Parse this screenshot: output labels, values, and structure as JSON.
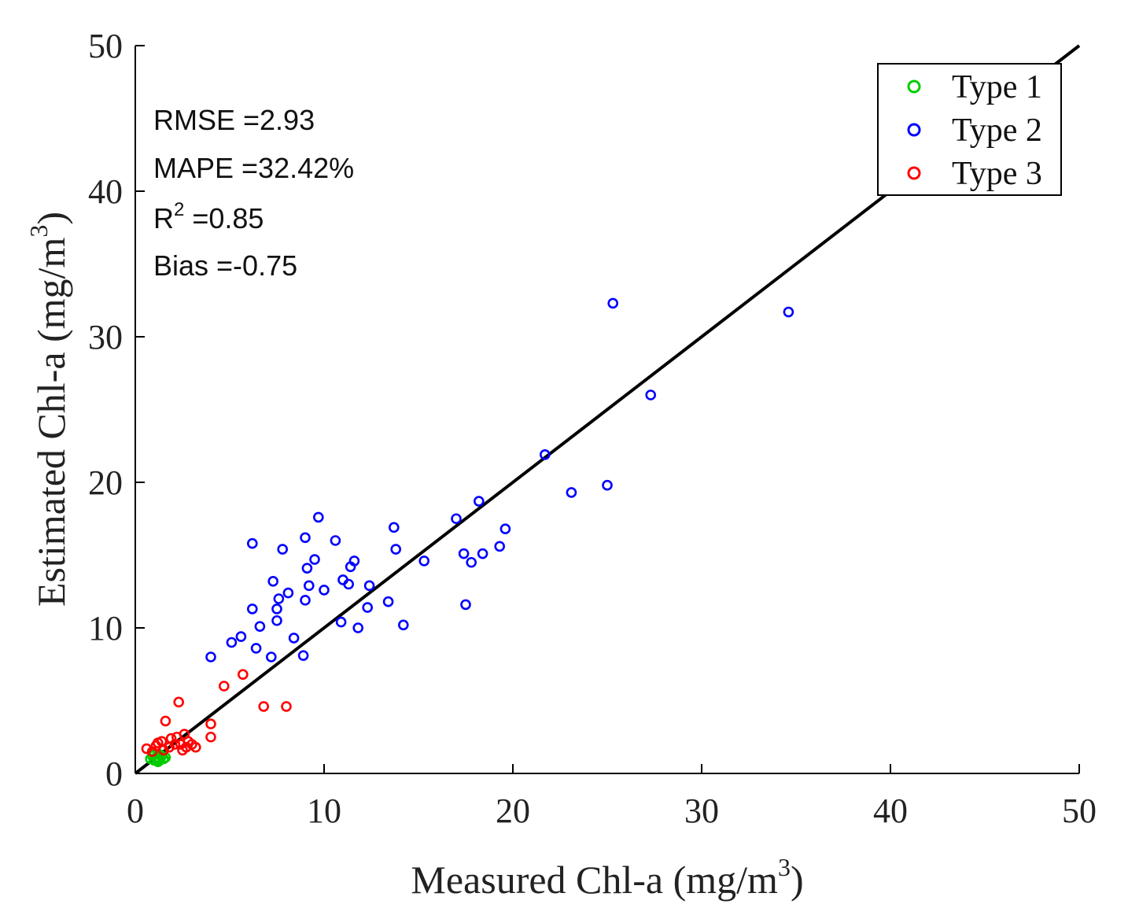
{
  "chart_data": {
    "type": "scatter",
    "title": "",
    "xlabel": "Measured Chl-a (mg/m",
    "ylabel": "Estimated Chl-a (mg/m",
    "label_superscript": "3",
    "label_close": ")",
    "xlim": [
      0,
      50
    ],
    "ylim": [
      0,
      50
    ],
    "xticks": [
      0,
      10,
      20,
      30,
      40,
      50
    ],
    "yticks": [
      0,
      10,
      20,
      30,
      40,
      50
    ],
    "grid": false,
    "reference_line": {
      "x": [
        0,
        50
      ],
      "y": [
        0,
        50
      ],
      "color": "#000000"
    },
    "legend_position": "top-right",
    "stats": {
      "rmse": "RMSE =2.93",
      "mape": "MAPE =32.42%",
      "r2_prefix": "R",
      "r2_sup": "2",
      "r2_value": " =0.85",
      "bias": "Bias =-0.75"
    },
    "series": [
      {
        "name": "Type 1",
        "color": "#00cc00",
        "points": [
          [
            0.8,
            1.0
          ],
          [
            0.9,
            1.2
          ],
          [
            1.0,
            0.9
          ],
          [
            1.1,
            1.1
          ],
          [
            1.2,
            1.0
          ],
          [
            1.3,
            0.9
          ],
          [
            1.4,
            1.2
          ],
          [
            1.5,
            1.0
          ],
          [
            1.0,
            1.3
          ],
          [
            1.2,
            0.8
          ],
          [
            1.6,
            1.1
          ],
          [
            1.3,
            1.3
          ]
        ]
      },
      {
        "name": "Type 2",
        "color": "#0000ff",
        "points": [
          [
            4.0,
            8.0
          ],
          [
            5.1,
            9.0
          ],
          [
            5.6,
            9.4
          ],
          [
            6.2,
            15.8
          ],
          [
            6.2,
            11.3
          ],
          [
            6.4,
            8.6
          ],
          [
            6.6,
            10.1
          ],
          [
            7.2,
            8.0
          ],
          [
            7.3,
            13.2
          ],
          [
            7.5,
            10.5
          ],
          [
            7.5,
            11.3
          ],
          [
            7.6,
            12.0
          ],
          [
            7.8,
            15.4
          ],
          [
            8.1,
            12.4
          ],
          [
            8.4,
            9.3
          ],
          [
            8.9,
            8.1
          ],
          [
            9.0,
            11.9
          ],
          [
            9.0,
            16.2
          ],
          [
            9.1,
            14.1
          ],
          [
            9.2,
            12.9
          ],
          [
            9.5,
            14.7
          ],
          [
            9.7,
            17.6
          ],
          [
            10.0,
            12.6
          ],
          [
            10.6,
            16.0
          ],
          [
            10.9,
            10.4
          ],
          [
            11.0,
            13.3
          ],
          [
            11.3,
            13.0
          ],
          [
            11.4,
            14.2
          ],
          [
            11.6,
            14.6
          ],
          [
            11.8,
            10.0
          ],
          [
            12.3,
            11.4
          ],
          [
            12.4,
            12.9
          ],
          [
            13.4,
            11.8
          ],
          [
            13.7,
            16.9
          ],
          [
            13.8,
            15.4
          ],
          [
            14.2,
            10.2
          ],
          [
            15.3,
            14.6
          ],
          [
            17.0,
            17.5
          ],
          [
            17.4,
            15.1
          ],
          [
            17.5,
            11.6
          ],
          [
            17.8,
            14.5
          ],
          [
            18.2,
            18.7
          ],
          [
            18.4,
            15.1
          ],
          [
            19.3,
            15.6
          ],
          [
            19.6,
            16.8
          ],
          [
            21.7,
            21.9
          ],
          [
            23.1,
            19.3
          ],
          [
            25.0,
            19.8
          ],
          [
            25.3,
            32.3
          ],
          [
            27.3,
            26.0
          ],
          [
            34.6,
            31.7
          ]
        ]
      },
      {
        "name": "Type 3",
        "color": "#ff0000",
        "points": [
          [
            0.6,
            1.7
          ],
          [
            0.9,
            1.5
          ],
          [
            1.1,
            1.9
          ],
          [
            1.2,
            2.1
          ],
          [
            1.4,
            2.2
          ],
          [
            1.5,
            1.6
          ],
          [
            1.6,
            3.6
          ],
          [
            1.8,
            1.8
          ],
          [
            1.9,
            2.4
          ],
          [
            2.1,
            2.0
          ],
          [
            2.2,
            2.5
          ],
          [
            2.3,
            4.9
          ],
          [
            2.4,
            2.0
          ],
          [
            2.5,
            1.6
          ],
          [
            2.6,
            2.7
          ],
          [
            2.7,
            1.8
          ],
          [
            2.8,
            2.2
          ],
          [
            3.0,
            2.0
          ],
          [
            3.2,
            1.8
          ],
          [
            4.0,
            3.4
          ],
          [
            4.0,
            2.5
          ],
          [
            4.7,
            6.0
          ],
          [
            5.7,
            6.8
          ],
          [
            6.8,
            4.6
          ],
          [
            8.0,
            4.6
          ]
        ]
      }
    ]
  }
}
